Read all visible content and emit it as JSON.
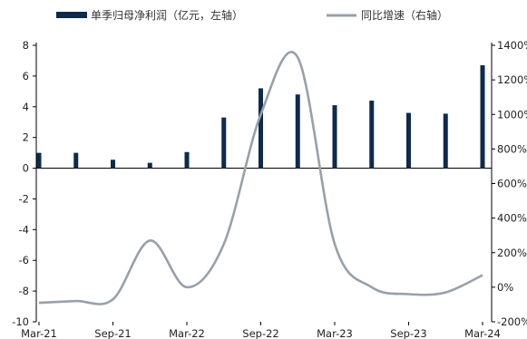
{
  "chart_data": {
    "type": "bar+line",
    "title": "",
    "legend_position": "top",
    "colors": {
      "bar": "#0e2a4e",
      "line": "#97a0ab",
      "axis": "#000000"
    },
    "grid": false,
    "categories": [
      "Mar-21",
      "Jun-21",
      "Sep-21",
      "Dec-21",
      "Mar-22",
      "Jun-22",
      "Sep-22",
      "Dec-22",
      "Mar-23",
      "Jun-23",
      "Sep-23",
      "Dec-23",
      "Mar-24"
    ],
    "x_tick_labels": [
      "Mar-21",
      "Sep-21",
      "Mar-22",
      "Sep-22",
      "Mar-23",
      "Sep-23",
      "Mar-24"
    ],
    "left_axis": {
      "min": -10,
      "max": 8,
      "ticks": [
        "8",
        "6",
        "4",
        "2",
        "0",
        "-2",
        "-4",
        "-6",
        "-8",
        "-10"
      ]
    },
    "right_axis": {
      "min": -200,
      "max": 1400,
      "ticks": [
        "1400%",
        "1200%",
        "1000%",
        "800%",
        "600%",
        "400%",
        "200%",
        "0%",
        "-200%"
      ]
    },
    "series": [
      {
        "name": "单季归母净利润（亿元，左轴）",
        "type": "bar",
        "axis": "left",
        "values": [
          1.0,
          1.0,
          0.55,
          0.35,
          1.05,
          3.3,
          5.2,
          4.8,
          4.1,
          4.4,
          3.6,
          3.55,
          6.7
        ]
      },
      {
        "name": "同比增速（右轴）",
        "type": "line",
        "axis": "right",
        "values": [
          -90,
          -80,
          -70,
          270,
          0,
          250,
          1000,
          1330,
          250,
          0,
          -40,
          -30,
          70
        ]
      }
    ]
  }
}
